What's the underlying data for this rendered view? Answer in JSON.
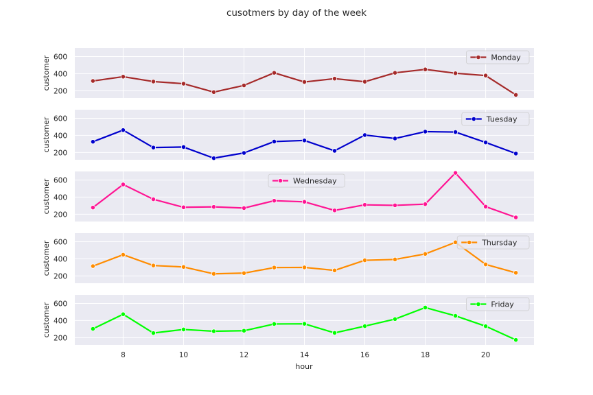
{
  "chart_data": {
    "type": "line",
    "title": "cusotmers by day of the week",
    "xlabel": "hour",
    "ylabel": "customer",
    "x": [
      7,
      8,
      9,
      10,
      11,
      12,
      13,
      14,
      15,
      16,
      17,
      18,
      19,
      20,
      21
    ],
    "xticks": [
      "8",
      "10",
      "12",
      "14",
      "16",
      "18",
      "20"
    ],
    "yticks": [
      "200",
      "400",
      "600"
    ],
    "xlim": [
      6.4,
      21.6
    ],
    "ylim": [
      115,
      700
    ],
    "grid": true,
    "series": [
      {
        "name": "Monday",
        "color": "#a52a2a",
        "legend": "top-right",
        "values": [
          315,
          365,
          308,
          283,
          185,
          263,
          410,
          303,
          342,
          306,
          410,
          450,
          405,
          378,
          152
        ]
      },
      {
        "name": "Tuesday",
        "color": "#0000cd",
        "legend": "top-right",
        "values": [
          326,
          462,
          258,
          264,
          134,
          195,
          328,
          341,
          220,
          404,
          364,
          444,
          439,
          318,
          188
        ]
      },
      {
        "name": "Wednesday",
        "color": "#ff1493",
        "legend": "top-center",
        "values": [
          278,
          548,
          375,
          281,
          286,
          272,
          358,
          345,
          245,
          310,
          304,
          318,
          683,
          289,
          163
        ]
      },
      {
        "name": "Thursday",
        "color": "#ff8c00",
        "legend": "top-right",
        "values": [
          315,
          448,
          322,
          305,
          225,
          233,
          298,
          300,
          265,
          383,
          393,
          457,
          593,
          335,
          237
        ]
      },
      {
        "name": "Friday",
        "color": "#00ff00",
        "legend": "top-right",
        "values": [
          303,
          474,
          254,
          296,
          275,
          281,
          360,
          362,
          256,
          335,
          417,
          552,
          455,
          334,
          174
        ]
      }
    ]
  }
}
